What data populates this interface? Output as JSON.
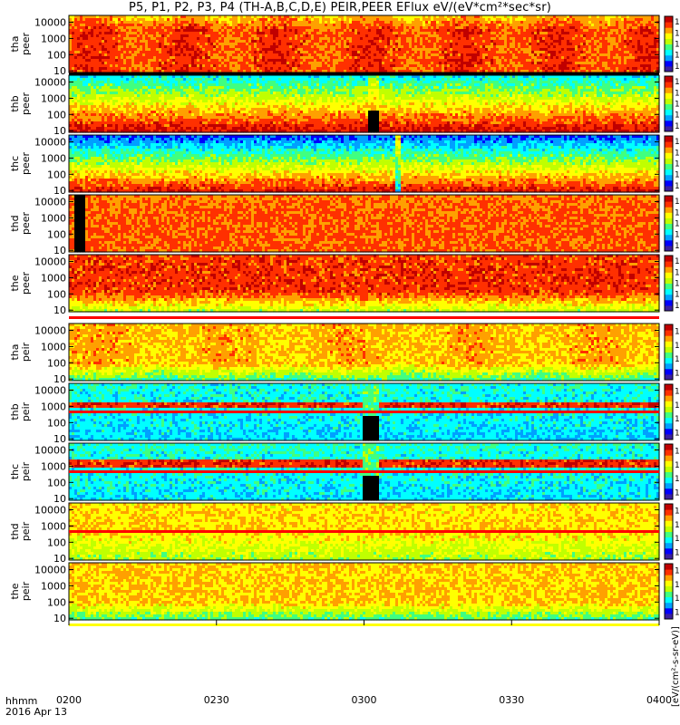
{
  "title": "P5, P1, P2, P3, P4 (TH-A,B,C,D,E) PEIR,PEER EFlux eV/(eV*cm²*sec*sr)",
  "footer": {
    "time_label": "hhmm",
    "date_label": "2016 Apr 13"
  },
  "colorbar_unit_label": "[eV/(cm²-s-sr-eV)]",
  "chart_data": {
    "type": "heatmap",
    "x_axis": {
      "range": [
        "0200",
        "0400"
      ],
      "tick_labels": [
        "0200",
        "0230",
        "0300",
        "0330",
        "0400"
      ]
    },
    "y_tick_labels": [
      "10",
      "100",
      "1000",
      "10000"
    ],
    "colorbar_ticks": {
      "peer": [
        "10⁰",
        "10²",
        "10⁴",
        "10⁶",
        "10⁸"
      ],
      "peir": [
        "10²",
        "10⁴",
        "10⁶",
        "10⁸"
      ]
    },
    "colors": {
      "scale": [
        "#3b1fa0",
        "#0000ff",
        "#00a0ff",
        "#00ffff",
        "#40ff80",
        "#c0ff00",
        "#ffff00",
        "#ffa000",
        "#ff3000",
        "#c00000"
      ]
    },
    "panels": [
      {
        "ylabel_top": "tha",
        "ylabel_bottom": "peer",
        "profile": "peer_a"
      },
      {
        "ylabel_top": "thb",
        "ylabel_bottom": "peer",
        "profile": "peer_b"
      },
      {
        "ylabel_top": "thc",
        "ylabel_bottom": "peer",
        "profile": "peer_c"
      },
      {
        "ylabel_top": "thd",
        "ylabel_bottom": "peer",
        "profile": "peer_d"
      },
      {
        "ylabel_top": "the",
        "ylabel_bottom": "peer",
        "profile": "peer_e"
      },
      {
        "ylabel_top": "tha",
        "ylabel_bottom": "peir",
        "profile": "peir_a"
      },
      {
        "ylabel_top": "thb",
        "ylabel_bottom": "peir",
        "profile": "peir_b"
      },
      {
        "ylabel_top": "thc",
        "ylabel_bottom": "peir",
        "profile": "peir_c"
      },
      {
        "ylabel_top": "thd",
        "ylabel_bottom": "peir",
        "profile": "peir_d"
      },
      {
        "ylabel_top": "the",
        "ylabel_bottom": "peir",
        "profile": "peir_e"
      }
    ]
  }
}
